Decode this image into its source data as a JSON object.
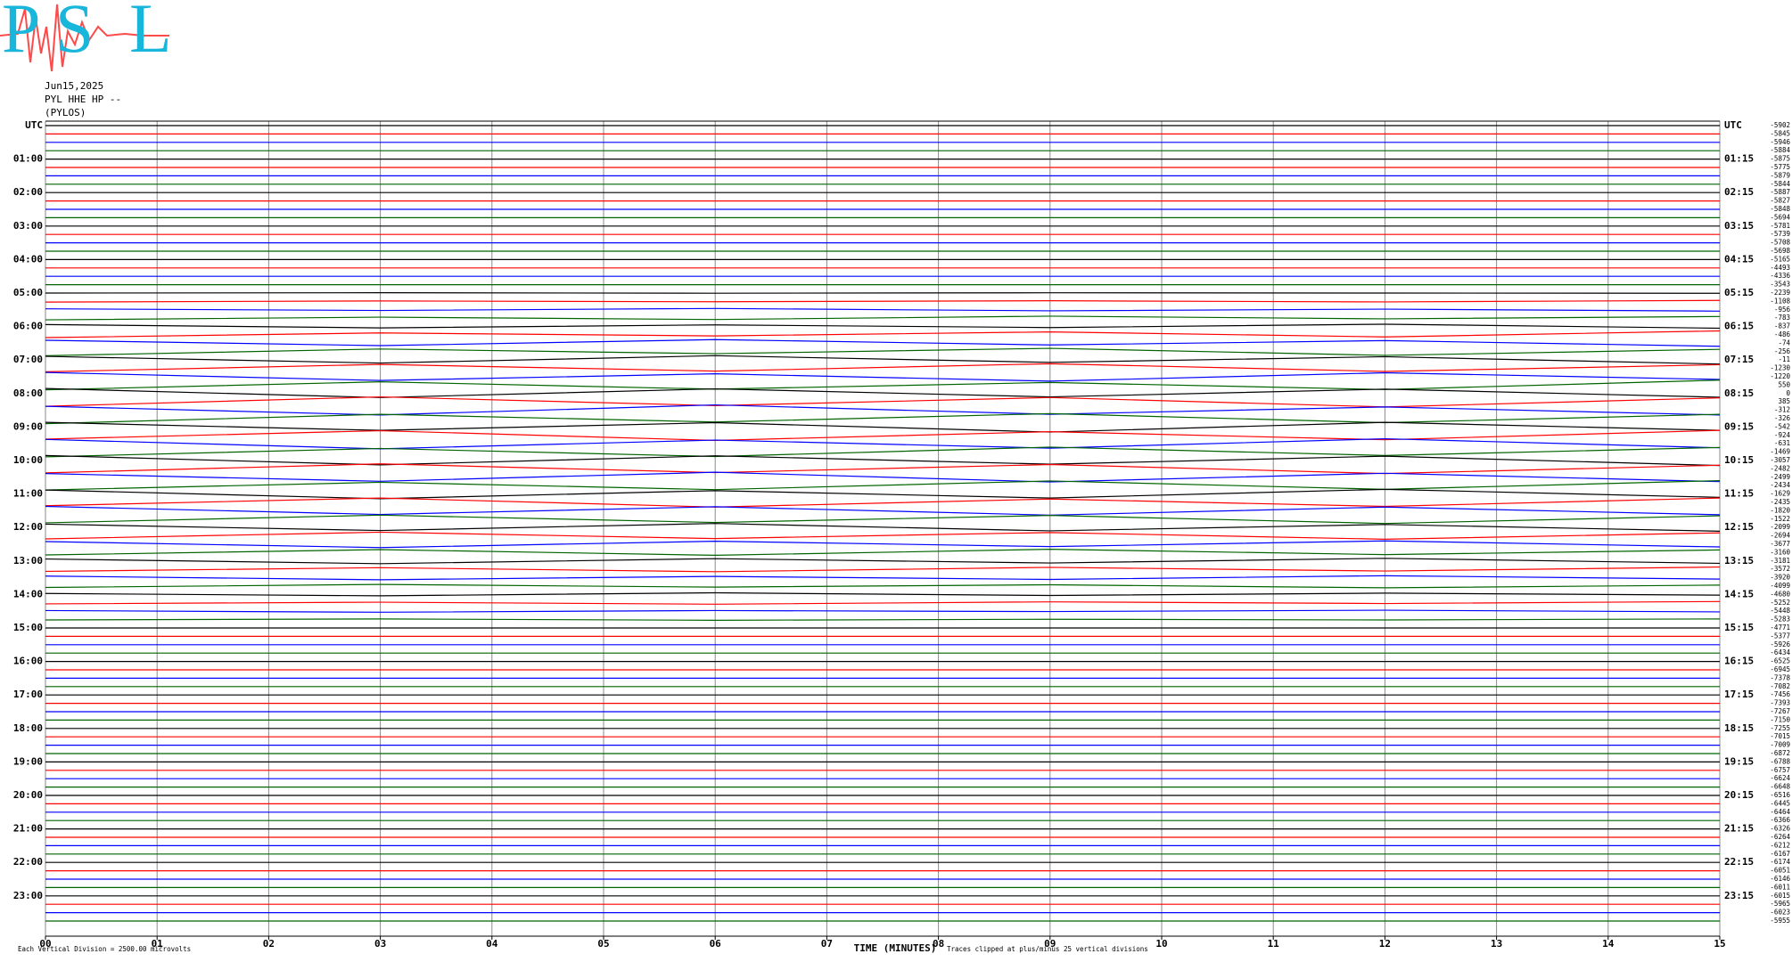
{
  "logo": {
    "letters": [
      "P",
      "S",
      "L"
    ]
  },
  "chart_data": {
    "type": "helicorder",
    "header": [
      "Jun15,2025",
      "PYL HHE HP --",
      "(PYLOS)"
    ],
    "xlabel": "TIME (MINUTES)",
    "footer_left": "Each Vertical Division = 2500.00 microvolts",
    "footer_right": "Traces clipped at plus/minus 25 vertical divisions",
    "division_uv": 2500,
    "xlim": [
      0,
      15
    ],
    "xticks": [
      {
        "value": 0,
        "label": "00"
      },
      {
        "value": 1,
        "label": "01"
      },
      {
        "value": 2,
        "label": "02"
      },
      {
        "value": 3,
        "label": "03"
      },
      {
        "value": 4,
        "label": "04"
      },
      {
        "value": 5,
        "label": "05"
      },
      {
        "value": 6,
        "label": "06"
      },
      {
        "value": 7,
        "label": "07"
      },
      {
        "value": 8,
        "label": "08"
      },
      {
        "value": 9,
        "label": "09"
      },
      {
        "value": 10,
        "label": "10"
      },
      {
        "value": 11,
        "label": "11"
      },
      {
        "value": 12,
        "label": "12"
      },
      {
        "value": 13,
        "label": "13"
      },
      {
        "value": 14,
        "label": "14"
      },
      {
        "value": 15,
        "label": "15"
      }
    ],
    "grid": true,
    "left_labels": [
      "UTC",
      "01:00",
      "02:00",
      "03:00",
      "04:00",
      "05:00",
      "06:00",
      "07:00",
      "08:00",
      "09:00",
      "10:00",
      "11:00",
      "12:00",
      "13:00",
      "14:00",
      "15:00",
      "16:00",
      "17:00",
      "18:00",
      "19:00",
      "20:00",
      "21:00",
      "22:00",
      "23:00"
    ],
    "right_labels": [
      "UTC",
      "01:15",
      "02:15",
      "03:15",
      "04:15",
      "05:15",
      "06:15",
      "07:15",
      "08:15",
      "09:15",
      "10:15",
      "11:15",
      "12:15",
      "13:15",
      "14:15",
      "15:15",
      "16:15",
      "17:15",
      "18:15",
      "19:15",
      "20:15",
      "21:15",
      "22:15",
      "23:15"
    ],
    "colors": [
      "#000000",
      "#ff0000",
      "#0000ff",
      "#006400"
    ],
    "offsets": [
      -5902,
      -5845,
      -5946,
      -5884,
      -5875,
      -5775,
      -5879,
      -5844,
      -5887,
      -5827,
      -5848,
      -5694,
      -5781,
      -5739,
      -5708,
      -5698,
      -5165,
      -4493,
      -4336,
      -3543,
      -2239,
      -1108,
      -956,
      -783,
      -837,
      -486,
      -74,
      -256,
      -11,
      -1230,
      -1220,
      550,
      0,
      385,
      -312,
      -326,
      -542,
      -924,
      -631,
      -1469,
      -3057,
      -2482,
      -2499,
      -2434,
      -1629,
      -2435,
      -1820,
      -1522,
      -2099,
      -2694,
      -3677,
      -3160,
      -3181,
      -3572,
      -3920,
      -4099,
      -4680,
      -5252,
      -5448,
      -5283,
      -4771,
      -5377,
      -5926,
      -6434,
      -6525,
      -6945,
      -7378,
      -7082,
      -7456,
      -7393,
      -7267,
      -7150,
      -7255,
      -7015,
      -7009,
      -6872,
      -6788,
      -6757,
      -6624,
      -6648,
      -6516,
      -6445,
      -6464,
      -6366,
      -6326,
      -6264,
      -6212,
      -6167,
      -6174,
      -6051,
      -6146,
      -6011,
      -6015,
      -5965,
      -6023,
      -5955
    ],
    "x": [
      0,
      3,
      6,
      9,
      12,
      15
    ],
    "traces": [
      [
        0,
        0,
        0,
        0,
        0,
        0
      ],
      [
        0,
        0,
        0,
        0,
        0,
        0
      ],
      [
        0,
        0,
        0,
        0,
        0,
        0
      ],
      [
        0,
        0,
        0,
        0,
        0,
        0
      ],
      [
        0,
        0,
        0,
        0,
        0,
        0
      ],
      [
        0,
        0,
        0,
        0,
        0,
        0
      ],
      [
        0,
        0,
        0,
        0,
        0,
        0
      ],
      [
        0,
        0,
        0,
        0,
        0,
        0
      ],
      [
        0,
        0,
        0,
        0,
        0,
        0
      ],
      [
        0,
        0,
        0,
        0,
        0,
        0
      ],
      [
        0,
        0,
        0,
        0,
        0,
        0
      ],
      [
        0,
        0,
        0,
        0,
        0,
        0
      ],
      [
        0,
        0,
        0,
        0,
        0,
        0
      ],
      [
        0,
        0,
        0,
        0,
        0,
        0
      ],
      [
        0,
        0,
        0,
        0,
        0,
        0
      ],
      [
        0,
        0,
        0,
        0,
        0,
        0
      ],
      [
        0,
        0,
        0,
        0,
        0,
        0
      ],
      [
        0,
        0,
        0,
        0,
        0,
        0
      ],
      [
        0,
        0,
        0,
        0,
        0,
        0
      ],
      [
        0,
        0,
        0,
        0,
        0,
        0
      ],
      [
        0,
        100,
        -50,
        80,
        0,
        -60
      ],
      [
        -200,
        150,
        -100,
        200,
        -150,
        300
      ],
      [
        300,
        -200,
        400,
        -300,
        200,
        -400
      ],
      [
        -500,
        300,
        -400,
        600,
        -200,
        500
      ],
      [
        600,
        -400,
        500,
        -300,
        700,
        -500
      ],
      [
        -800,
        600,
        -300,
        900,
        -600,
        1200
      ],
      [
        900,
        -700,
        1100,
        -500,
        800,
        -900
      ],
      [
        -1200,
        800,
        -600,
        1000,
        -1100,
        700
      ],
      [
        1100,
        -900,
        1300,
        -700,
        1000,
        -1200
      ],
      [
        -1000,
        1200,
        -800,
        1400,
        -900,
        1100
      ],
      [
        1300,
        -1100,
        900,
        -1300,
        1200,
        -800
      ],
      [
        -1400,
        1000,
        -1200,
        800,
        -1300,
        1500
      ],
      [
        1500,
        -1200,
        1400,
        -1000,
        1300,
        -1100
      ],
      [
        -1300,
        1500,
        -1100,
        1300,
        -1500,
        1200
      ],
      [
        1200,
        -1400,
        1600,
        -1200,
        1000,
        -1400
      ],
      [
        -1500,
        1300,
        -1000,
        1500,
        -1200,
        1300
      ],
      [
        1400,
        -1000,
        1300,
        -1500,
        1400,
        -1000
      ],
      [
        -1100,
        1400,
        -1500,
        1100,
        -1300,
        1500
      ],
      [
        1300,
        -1500,
        1100,
        -1300,
        1500,
        -1200
      ],
      [
        -1400,
        1100,
        -1300,
        1500,
        -1000,
        1400
      ],
      [
        1500,
        -1300,
        1400,
        -1100,
        1300,
        -1500
      ],
      [
        -1200,
        1500,
        -1100,
        1300,
        -1400,
        1100
      ],
      [
        1100,
        -1200,
        1500,
        -1400,
        1200,
        -1300
      ],
      [
        -1300,
        1000,
        -1200,
        1400,
        -1100,
        1500
      ],
      [
        1200,
        -1400,
        1000,
        -1200,
        1400,
        -1000
      ],
      [
        -1000,
        1300,
        -1400,
        1000,
        -1200,
        1300
      ],
      [
        1300,
        -1100,
        1200,
        -1300,
        1100,
        -1200
      ],
      [
        -1100,
        1200,
        -1000,
        1100,
        -1300,
        1000
      ],
      [
        1000,
        -900,
        1200,
        -1000,
        900,
        -1100
      ],
      [
        -900,
        1100,
        -800,
        1000,
        -1000,
        900
      ],
      [
        800,
        -1000,
        900,
        -700,
        1000,
        -800
      ],
      [
        -700,
        900,
        -800,
        1000,
        -600,
        800
      ],
      [
        600,
        -800,
        700,
        -600,
        800,
        -700
      ],
      [
        -600,
        500,
        -700,
        600,
        -500,
        700
      ],
      [
        500,
        -600,
        400,
        -500,
        600,
        -400
      ],
      [
        -400,
        500,
        -300,
        400,
        -500,
        300
      ],
      [
        300,
        -400,
        500,
        -300,
        400,
        -200
      ],
      [
        -300,
        200,
        -400,
        300,
        -200,
        400
      ],
      [
        200,
        -300,
        200,
        -100,
        300,
        -200
      ],
      [
        -100,
        200,
        -200,
        100,
        -100,
        200
      ],
      [
        0,
        0,
        0,
        0,
        0,
        0
      ],
      [
        0,
        0,
        0,
        0,
        0,
        0
      ],
      [
        0,
        0,
        0,
        0,
        0,
        0
      ],
      [
        0,
        0,
        0,
        0,
        0,
        0
      ],
      [
        0,
        0,
        0,
        0,
        0,
        0
      ],
      [
        0,
        0,
        0,
        0,
        0,
        0
      ],
      [
        0,
        0,
        0,
        0,
        0,
        0
      ],
      [
        0,
        0,
        0,
        0,
        0,
        0
      ],
      [
        0,
        0,
        0,
        0,
        0,
        0
      ],
      [
        0,
        0,
        0,
        0,
        0,
        0
      ],
      [
        0,
        0,
        0,
        0,
        0,
        0
      ],
      [
        0,
        0,
        0,
        0,
        0,
        0
      ],
      [
        0,
        0,
        0,
        0,
        0,
        0
      ],
      [
        0,
        0,
        0,
        0,
        0,
        0
      ],
      [
        0,
        0,
        0,
        0,
        0,
        0
      ],
      [
        0,
        0,
        0,
        0,
        0,
        0
      ],
      [
        0,
        0,
        0,
        0,
        0,
        0
      ],
      [
        0,
        0,
        0,
        0,
        0,
        0
      ],
      [
        0,
        0,
        0,
        0,
        0,
        0
      ],
      [
        0,
        0,
        0,
        0,
        0,
        0
      ],
      [
        0,
        0,
        0,
        0,
        0,
        0
      ],
      [
        0,
        0,
        0,
        0,
        0,
        0
      ],
      [
        0,
        0,
        0,
        0,
        0,
        0
      ],
      [
        0,
        0,
        0,
        0,
        0,
        0
      ],
      [
        0,
        0,
        0,
        0,
        0,
        0
      ],
      [
        0,
        0,
        0,
        0,
        0,
        0
      ],
      [
        0,
        0,
        0,
        0,
        0,
        0
      ],
      [
        0,
        0,
        0,
        0,
        0,
        0
      ],
      [
        0,
        0,
        0,
        0,
        0,
        0
      ],
      [
        0,
        0,
        0,
        0,
        0,
        0
      ],
      [
        0,
        0,
        0,
        0,
        0,
        0
      ],
      [
        0,
        0,
        0,
        0,
        0,
        0
      ],
      [
        0,
        0,
        0,
        0,
        0,
        0
      ],
      [
        0,
        0,
        0,
        0,
        0,
        0
      ],
      [
        0,
        0,
        0,
        0,
        0,
        0
      ],
      [
        0,
        0,
        0,
        0,
        0,
        0
      ]
    ]
  }
}
